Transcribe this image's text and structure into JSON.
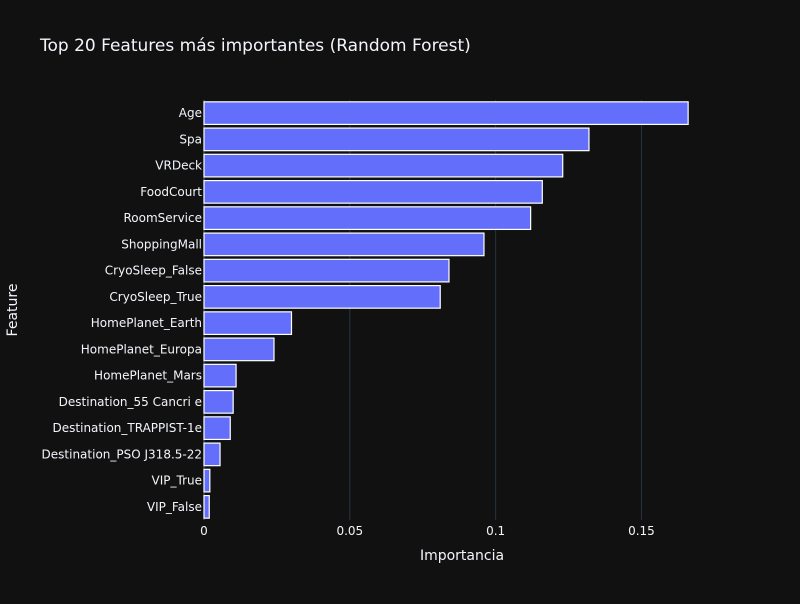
{
  "chart_data": {
    "type": "bar",
    "orientation": "horizontal",
    "title": "Top 20 Features más importantes (Random Forest)",
    "xlabel": "Importancia",
    "ylabel": "Feature",
    "categories": [
      "Age",
      "Spa",
      "VRDeck",
      "FoodCourt",
      "RoomService",
      "ShoppingMall",
      "CryoSleep_False",
      "CryoSleep_True",
      "HomePlanet_Earth",
      "HomePlanet_Europa",
      "HomePlanet_Mars",
      "Destination_55 Cancri e",
      "Destination_TRAPPIST-1e",
      "Destination_PSO J318.5-22",
      "VIP_True",
      "VIP_False"
    ],
    "values": [
      0.166,
      0.132,
      0.123,
      0.116,
      0.112,
      0.096,
      0.084,
      0.081,
      0.03,
      0.024,
      0.011,
      0.01,
      0.009,
      0.0055,
      0.002,
      0.0018
    ],
    "xlim": [
      0,
      0.1783
    ],
    "xticks": [
      0,
      0.05,
      0.1,
      0.15
    ],
    "xtick_labels": [
      "0",
      "0.05",
      "0.1",
      "0.15"
    ],
    "grid": true,
    "colors": {
      "background": "#111111",
      "bar_fill": "#636efa",
      "bar_stroke": "#ffffff",
      "grid": "#283442",
      "text": "#f2f5fa"
    }
  }
}
